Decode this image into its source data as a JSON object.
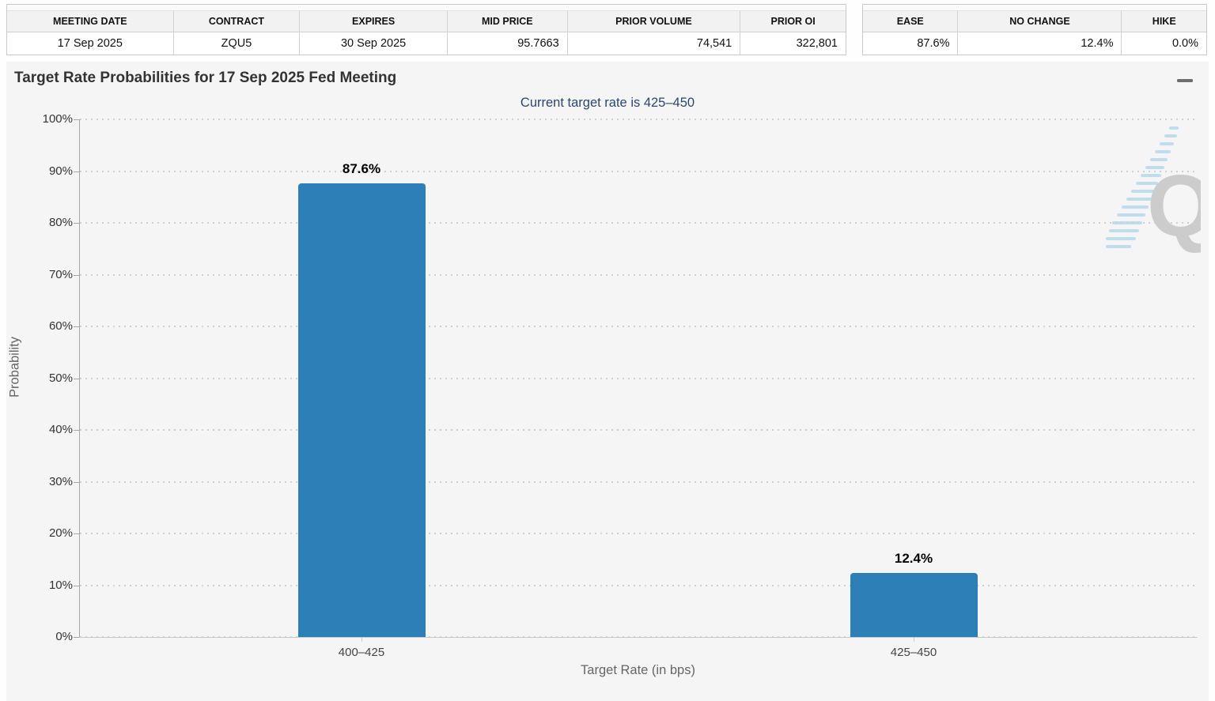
{
  "summary_table": {
    "columns": [
      {
        "label": "MEETING DATE",
        "value": "17 Sep 2025"
      },
      {
        "label": "CONTRACT",
        "value": "ZQU5"
      },
      {
        "label": "EXPIRES",
        "value": "30 Sep 2025"
      },
      {
        "label": "MID PRICE",
        "value": "95.7663"
      },
      {
        "label": "PRIOR VOLUME",
        "value": "74,541"
      },
      {
        "label": "PRIOR OI",
        "value": "322,801"
      }
    ]
  },
  "probability_table": {
    "columns": [
      {
        "label": "EASE",
        "value": "87.6%"
      },
      {
        "label": "NO CHANGE",
        "value": "12.4%"
      },
      {
        "label": "HIKE",
        "value": "0.0%"
      }
    ]
  },
  "chart": {
    "title": "Target Rate Probabilities for 17 Sep 2025 Fed Meeting",
    "subtitle": "Current target rate is 425–450",
    "menu_icon": "hamburger-icon",
    "watermark_letter": "Q"
  },
  "chart_data": {
    "type": "bar",
    "title": "Target Rate Probabilities for 17 Sep 2025 Fed Meeting",
    "subtitle": "Current target rate is 425–450",
    "categories": [
      "400–425",
      "425–450"
    ],
    "values": [
      87.6,
      12.4
    ],
    "value_labels": [
      "87.6%",
      "12.4%"
    ],
    "xlabel": "Target Rate (in bps)",
    "ylabel": "Probability",
    "ylim": [
      0,
      100
    ],
    "ytick_step": 10,
    "ytick_suffix": "%",
    "grid": "horizontal-dotted",
    "legend": "none",
    "bar_color": "#2d7fb8"
  }
}
